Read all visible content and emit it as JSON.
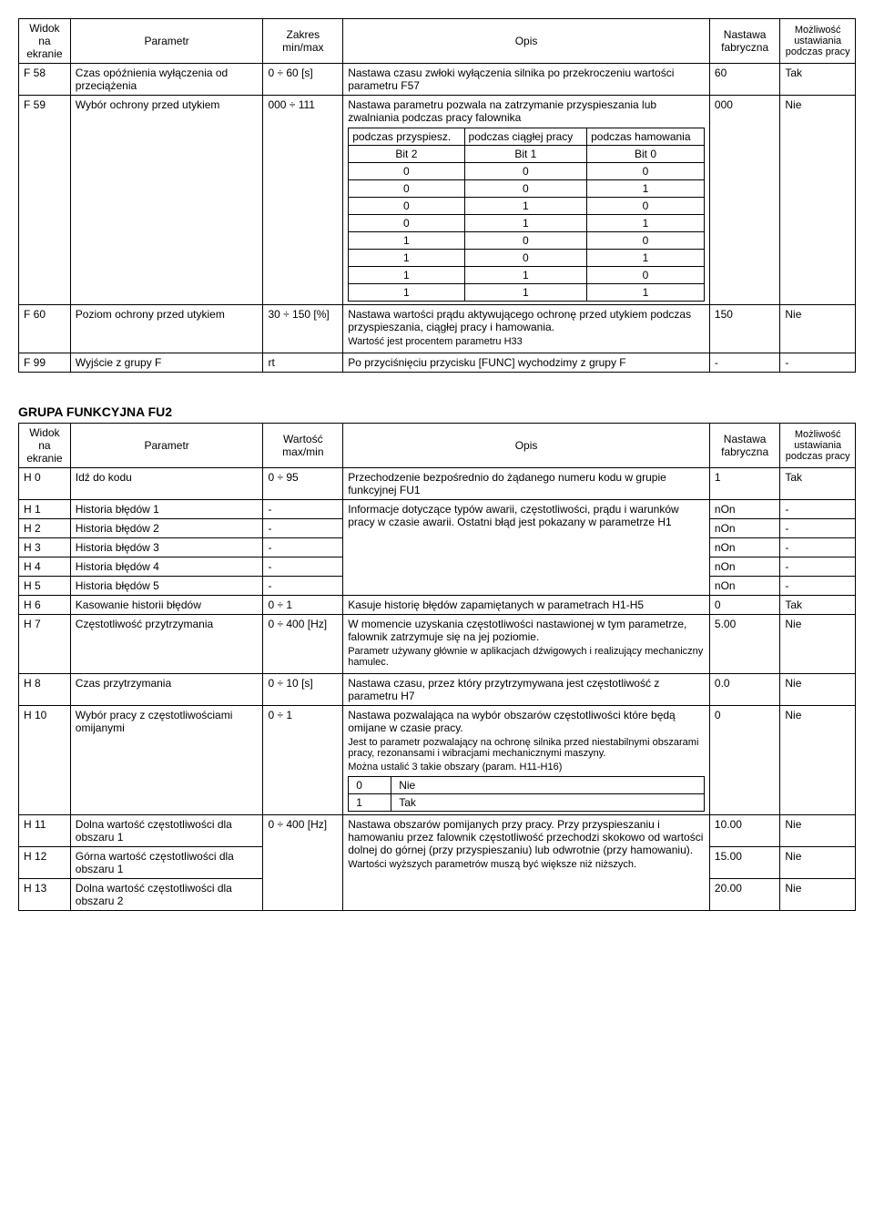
{
  "headers": {
    "h1": "Widok na ekranie",
    "h2": "Parametr",
    "h3a": "Zakres min/max",
    "h3b": "Wartość max/min",
    "h4": "Opis",
    "h5": "Nastawa fabryczna",
    "h6": "Możliwość ustawiania podczas pracy"
  },
  "t1": {
    "r1": {
      "code": "F 58",
      "param": "Czas opóźnienia wyłączenia od przeciążenia",
      "range": "0 ÷ 60 [s]",
      "desc": "Nastawa czasu zwłoki wyłączenia silnika po przekroczeniu wartości parametru F57",
      "fact": "60",
      "runt": "Tak"
    },
    "r2": {
      "code": "F 59",
      "param": "Wybór ochrony przed utykiem",
      "range": "000 ÷ 111",
      "desc": "Nastawa parametru pozwala na zatrzymanie przyspieszania lub zwalniania podczas pracy falownika",
      "fact": "000",
      "runt": "Nie",
      "inner_h1": "podczas przyspiesz.",
      "inner_h2": "podczas ciągłej pracy",
      "inner_h3": "podczas hamowania",
      "inner_b1": "Bit 2",
      "inner_b2": "Bit 1",
      "inner_b3": "Bit 0"
    },
    "r3": {
      "code": "F 60",
      "param": "Poziom ochrony przed utykiem",
      "range": "30 ÷ 150 [%]",
      "desc_l1": "Nastawa wartości prądu aktywującego ochronę przed utykiem podczas przyspieszania, ciągłej pracy i hamowania.",
      "desc_l2": "Wartość jest procentem parametru H33",
      "fact": "150",
      "runt": "Nie"
    },
    "r4": {
      "code": "F 99",
      "param": "Wyjście z grupy F",
      "range": "rt",
      "desc": "Po przyciśnięciu przycisku [FUNC] wychodzimy z grupy F",
      "fact": "-",
      "runt": "-"
    }
  },
  "section2_title": "GRUPA FUNKCYJNA FU2",
  "t2": {
    "r0": {
      "code": "H 0",
      "param": "Idź do kodu",
      "range": "0 ÷ 95",
      "desc": "Przechodzenie bezpośrednio do żądanego numeru kodu w grupie funkcyjnej FU1",
      "fact": "1",
      "runt": "Tak"
    },
    "r1": {
      "code": "H 1",
      "param": "Historia błędów 1",
      "range": "-",
      "fact": "nOn",
      "runt": "-"
    },
    "r2": {
      "code": "H 2",
      "param": "Historia błędów 2",
      "range": "-",
      "fact": "nOn",
      "runt": "-"
    },
    "r3": {
      "code": "H 3",
      "param": "Historia błędów 3",
      "range": "-",
      "fact": "nOn",
      "runt": "-"
    },
    "r4": {
      "code": "H 4",
      "param": "Historia błędów 4",
      "range": "-",
      "fact": "nOn",
      "runt": "-"
    },
    "r5": {
      "code": "H 5",
      "param": "Historia błędów 5",
      "range": "-",
      "fact": "nOn",
      "runt": "-"
    },
    "r15_desc": "Informacje dotyczące typów awarii, częstotliwości, prądu i warunków pracy w czasie awarii. Ostatni błąd jest pokazany w parametrze H1",
    "r6": {
      "code": "H 6",
      "param": "Kasowanie historii błędów",
      "range": "0 ÷ 1",
      "desc": "Kasuje historię błędów zapamiętanych w parametrach H1-H5",
      "fact": "0",
      "runt": "Tak"
    },
    "r7": {
      "code": "H 7",
      "param": "Częstotliwość przytrzymania",
      "range": "0 ÷ 400 [Hz]",
      "desc_l1": "W momencie uzyskania częstotliwości nastawionej w tym parametrze, falownik zatrzymuje się na jej poziomie.",
      "desc_l2": "Parametr używany głównie w aplikacjach dźwigowych i realizujący mechaniczny hamulec.",
      "fact": "5.00",
      "runt": "Nie"
    },
    "r8": {
      "code": "H 8",
      "param": "Czas przytrzymania",
      "range": "0 ÷ 10 [s]",
      "desc": "Nastawa czasu, przez który przytrzymywana jest częstotliwość z parametru H7",
      "fact": "0.0",
      "runt": "Nie"
    },
    "r10": {
      "code": "H 10",
      "param": "Wybór pracy z częstotliwościami omijanymi",
      "range": "0 ÷ 1",
      "desc_l1": "Nastawa pozwalająca na wybór obszarów częstotliwości które będą omijane w czasie pracy.",
      "desc_l2": "Jest to parametr pozwalający na ochronę silnika przed niestabilnymi obszarami pracy, rezonansami i wibracjami mechanicznymi maszyny.",
      "desc_l3": "Można ustalić 3 takie obszary (param. H11-H16)",
      "opt0_k": "0",
      "opt0_v": "Nie",
      "opt1_k": "1",
      "opt1_v": "Tak",
      "fact": "0",
      "runt": "Nie"
    },
    "r11": {
      "code": "H 11",
      "param": "Dolna wartość częstotliwości dla obszaru 1",
      "range": "0 ÷ 400 [Hz]",
      "fact": "10.00",
      "runt": "Nie"
    },
    "r12": {
      "code": "H 12",
      "param": "Górna wartość częstotliwości dla obszaru 1",
      "fact": "15.00",
      "runt": "Nie"
    },
    "r1112_desc_l1": "Nastawa obszarów pomijanych przy pracy. Przy przyspieszaniu i hamowaniu przez falownik częstotliwość przechodzi skokowo od wartości dolnej do górnej (przy przyspieszaniu) lub odwrotnie (przy hamowaniu).",
    "r1112_desc_l2": "Wartości wyższych parametrów muszą być większe niż niższych.",
    "r13": {
      "code": "H 13",
      "param": "Dolna wartość częstotliwości dla obszaru 2",
      "fact": "20.00",
      "runt": "Nie"
    }
  }
}
